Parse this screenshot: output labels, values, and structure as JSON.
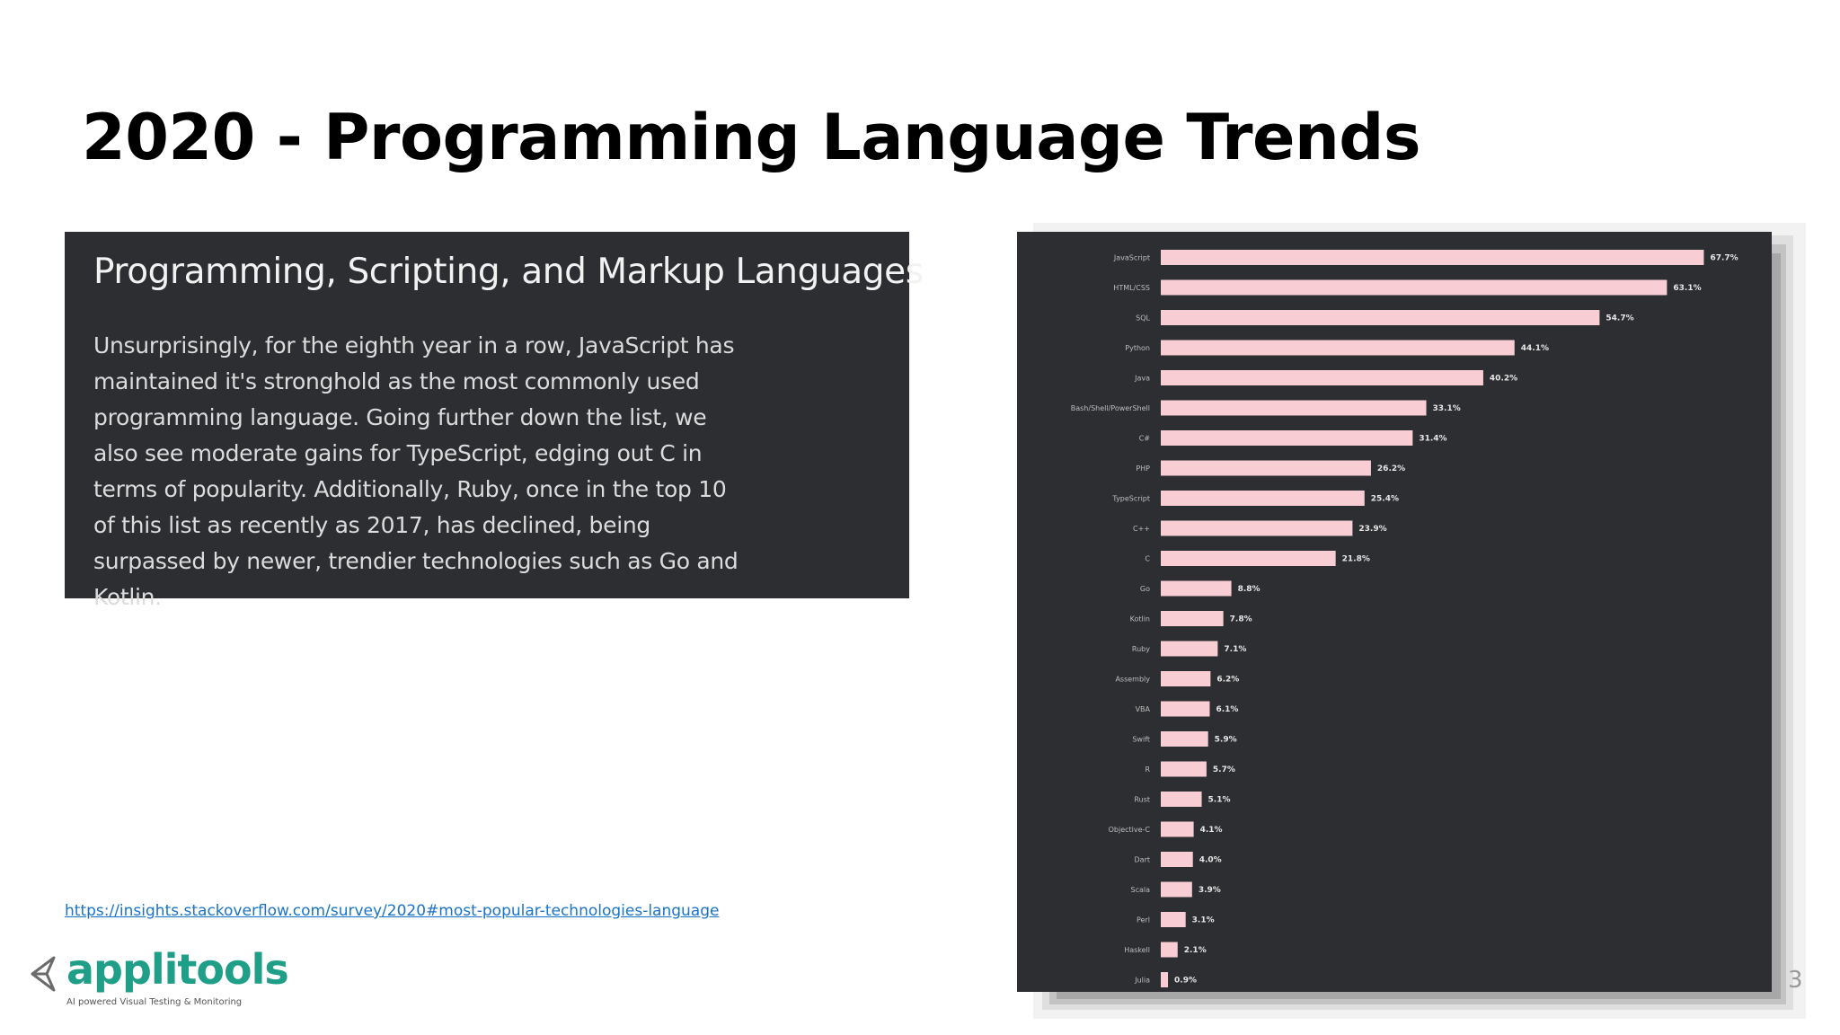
{
  "slide": {
    "title": "2020 - Programming Language Trends",
    "page_number": "3"
  },
  "text_card": {
    "heading": "Programming, Scripting, and Markup Languages",
    "body": "Unsurprisingly, for the eighth year in a row, JavaScript has maintained it's stronghold as the most commonly used programming language. Going further down the list, we also see moderate gains for TypeScript, edging out C in terms of popularity. Additionally, Ruby, once in the top 10 of this list as recently as 2017, has declined, being surpassed by newer, trendier technologies such as Go and Kotlin."
  },
  "source_link": {
    "text": "https://insights.stackoverflow.com/survey/2020#most-popular-technologies-language"
  },
  "logo": {
    "wordmark": "applitools",
    "tagline": "AI powered Visual Testing & Monitoring",
    "color": "#1f9e88"
  },
  "colors": {
    "card_bg": "#2d2e31",
    "bar": "#f8cdd4",
    "link": "#1a73c9"
  },
  "chart_data": {
    "type": "bar",
    "orientation": "horizontal",
    "categories": [
      "JavaScript",
      "HTML/CSS",
      "SQL",
      "Python",
      "Java",
      "Bash/Shell/PowerShell",
      "C#",
      "PHP",
      "TypeScript",
      "C++",
      "C",
      "Go",
      "Kotlin",
      "Ruby",
      "Assembly",
      "VBA",
      "Swift",
      "R",
      "Rust",
      "Objective-C",
      "Dart",
      "Scala",
      "Perl",
      "Haskell",
      "Julia"
    ],
    "values": [
      67.7,
      63.1,
      54.7,
      44.1,
      40.2,
      33.1,
      31.4,
      26.2,
      25.4,
      23.9,
      21.8,
      8.8,
      7.8,
      7.1,
      6.2,
      6.1,
      5.9,
      5.7,
      5.1,
      4.1,
      4.0,
      3.9,
      3.1,
      2.1,
      0.9
    ],
    "value_labels": [
      "67.7%",
      "63.1%",
      "54.7%",
      "44.1%",
      "40.2%",
      "33.1%",
      "31.4%",
      "26.2%",
      "25.4%",
      "23.9%",
      "21.8%",
      "8.8%",
      "7.8%",
      "7.1%",
      "6.2%",
      "6.1%",
      "5.9%",
      "5.7%",
      "5.1%",
      "4.1%",
      "4.0%",
      "3.9%",
      "3.1%",
      "2.1%",
      "0.9%"
    ],
    "xlim": [
      0,
      70
    ],
    "grid": false,
    "legend": "none"
  }
}
